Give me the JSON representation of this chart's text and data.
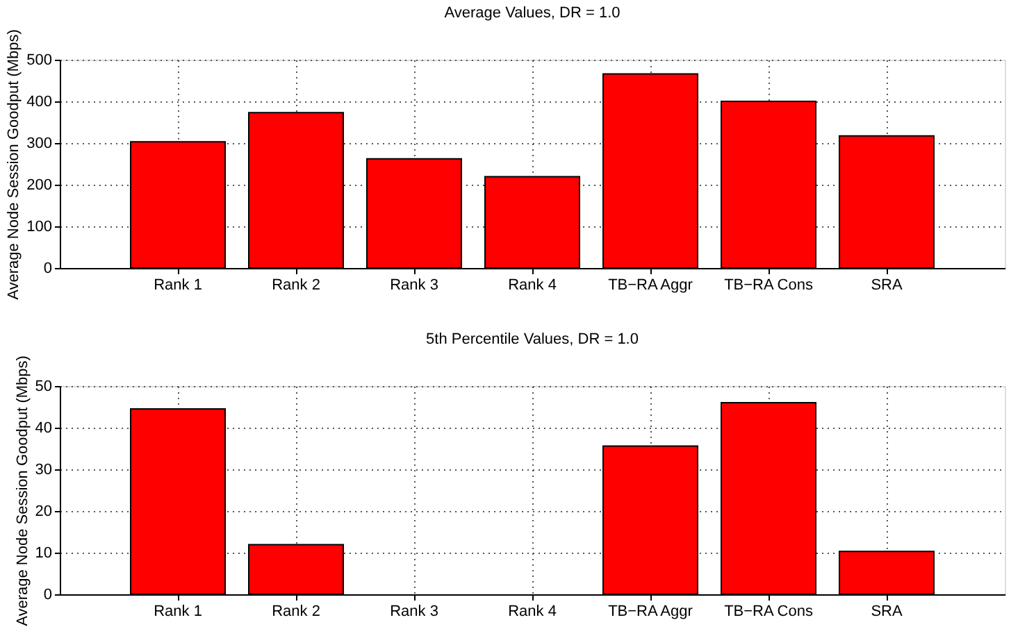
{
  "chart_data": [
    {
      "type": "bar",
      "title": "Average Values, DR = 1.0",
      "ylabel": "Average Node Session Goodput (Mbps)",
      "categories": [
        "Rank 1",
        "Rank 2",
        "Rank 3",
        "Rank 4",
        "TB−RA Aggr",
        "TB−RA Cons",
        "SRA"
      ],
      "values": [
        303,
        373,
        262,
        219,
        466,
        400,
        317
      ],
      "color": "#ff0000",
      "ylim": [
        0,
        500
      ],
      "yticks": [
        0,
        100,
        200,
        300,
        400,
        500
      ],
      "grid": true
    },
    {
      "type": "bar",
      "title": "5th Percentile Values, DR = 1.0",
      "ylabel": "Average Node Session Goodput (Mbps)",
      "categories": [
        "Rank 1",
        "Rank 2",
        "Rank 3",
        "Rank 4",
        "TB−RA Aggr",
        "TB−RA Cons",
        "SRA"
      ],
      "values": [
        44.5,
        11.9,
        0,
        0,
        35.6,
        46,
        10.3
      ],
      "color": "#ff0000",
      "ylim": [
        0,
        50
      ],
      "yticks": [
        0,
        10,
        20,
        30,
        40,
        50
      ],
      "grid": true
    }
  ]
}
